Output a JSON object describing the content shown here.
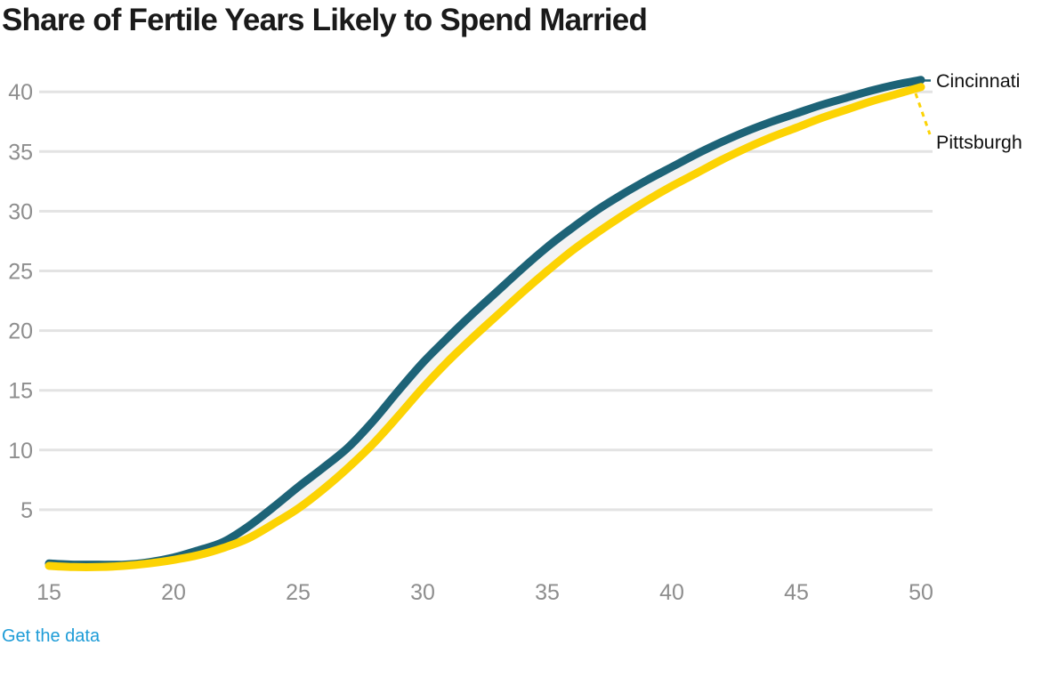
{
  "header": {
    "title": "Share of Fertile Years Likely to Spend Married"
  },
  "footer": {
    "link_label": "Get the data"
  },
  "colors": {
    "cincinnati": "#1d6377",
    "pittsburgh": "#fcd303",
    "between_fill": "#f3f3f3",
    "gridline": "#e3e3e3",
    "tick_label": "#8e8e8e",
    "end_label": "#111111",
    "title": "#1a1a1a",
    "link": "#1e9cd7",
    "background": "#ffffff"
  },
  "chart_data": {
    "type": "line",
    "title": "Share of Fertile Years Likely to Spend Married",
    "xlabel": "",
    "ylabel": "",
    "x": [
      15,
      16,
      17,
      18,
      19,
      20,
      21,
      22,
      23,
      24,
      25,
      26,
      27,
      28,
      29,
      30,
      31,
      32,
      33,
      34,
      35,
      36,
      37,
      38,
      39,
      40,
      41,
      42,
      43,
      44,
      45,
      46,
      47,
      48,
      49,
      50
    ],
    "series": [
      {
        "name": "Cincinnati",
        "color_key": "cincinnati",
        "values": [
          0.5,
          0.4,
          0.4,
          0.4,
          0.6,
          1.0,
          1.6,
          2.3,
          3.6,
          5.2,
          6.9,
          8.5,
          10.2,
          12.4,
          14.9,
          17.3,
          19.4,
          21.4,
          23.3,
          25.2,
          27.0,
          28.6,
          30.1,
          31.4,
          32.6,
          33.7,
          34.8,
          35.8,
          36.7,
          37.5,
          38.2,
          38.9,
          39.5,
          40.1,
          40.6,
          41.0
        ]
      },
      {
        "name": "Pittsburgh",
        "color_key": "pittsburgh",
        "values": [
          0.3,
          0.2,
          0.2,
          0.3,
          0.5,
          0.8,
          1.2,
          1.8,
          2.6,
          3.8,
          5.1,
          6.7,
          8.5,
          10.5,
          12.8,
          15.2,
          17.4,
          19.4,
          21.3,
          23.2,
          25.0,
          26.7,
          28.2,
          29.6,
          30.9,
          32.1,
          33.2,
          34.3,
          35.3,
          36.2,
          37.0,
          37.8,
          38.5,
          39.2,
          39.8,
          40.4
        ]
      }
    ],
    "xlim": [
      15,
      50
    ],
    "ylim": [
      0,
      42
    ],
    "xticks": [
      15,
      20,
      25,
      30,
      35,
      40,
      45,
      50
    ],
    "yticks": [
      5,
      10,
      15,
      20,
      25,
      30,
      35,
      40
    ],
    "grid": "horizontal-only",
    "legend": "direct-labels-at-line-end",
    "annotations": {
      "between_series_fill": true
    }
  }
}
